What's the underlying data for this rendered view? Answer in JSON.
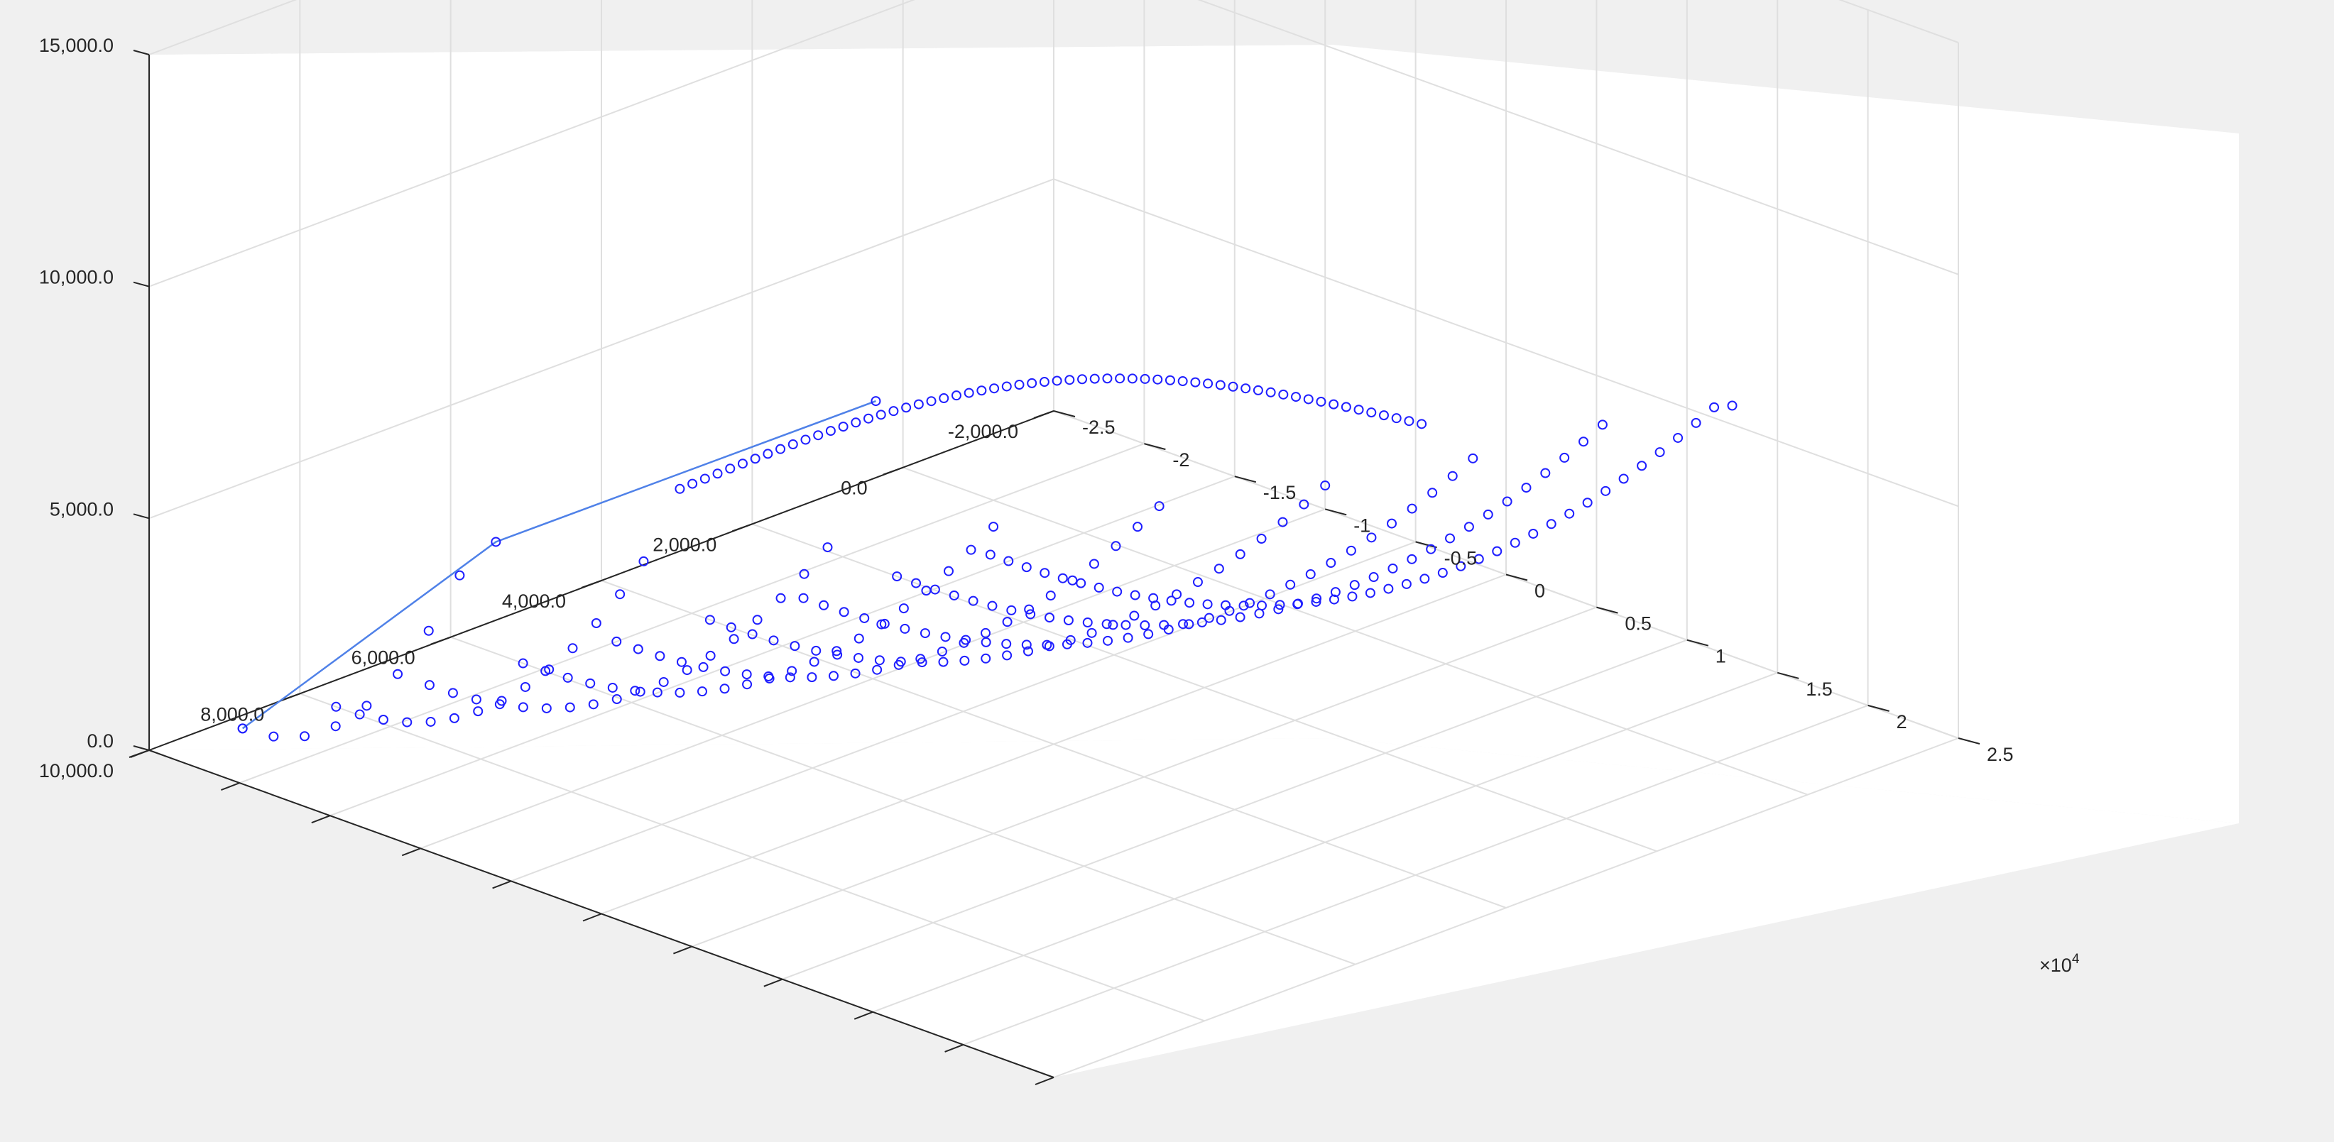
{
  "chart_data": {
    "type": "scatter3d",
    "title": "",
    "xlabel": "",
    "ylabel": "",
    "zlabel": "",
    "grid": true,
    "colors": {
      "marker": "#1f1fff",
      "line": "#4f81e8",
      "axes": "#262626",
      "grid": "#dfdfdf",
      "figure_bg": "#f0f0f0",
      "axes_bg": "#ffffff"
    },
    "axes": {
      "x": {
        "lim": [
          -2.5,
          2.5
        ],
        "ticks": [
          "-2.5",
          "-2",
          "-1.5",
          "-1",
          "-0.5",
          "0",
          "0.5",
          "1",
          "1.5",
          "2",
          "2.5"
        ],
        "multiplier": "×10",
        "multiplier_exp": "4"
      },
      "y": {
        "lim": [
          -2000,
          10000
        ],
        "ticks": [
          "-2,000.0",
          "0.0",
          "2,000.0",
          "4,000.0",
          "6,000.0",
          "8,000.0",
          "10,000.0"
        ]
      },
      "z": {
        "lim": [
          0,
          15000
        ],
        "ticks": [
          "0.0",
          "5,000.0",
          "10,000.0",
          "15,000.0"
        ]
      }
    },
    "series": [
      {
        "style": "markers",
        "description_points": "fan of circular markers along rows of constant y, rising in z toward a peak near z≈9000"
      },
      {
        "style": "line",
        "points": [
          [
            -2.4,
            9000,
            0
          ],
          [
            -1.0,
            9000,
            6000
          ],
          [
            1.1,
            9000,
            12000
          ]
        ]
      }
    ],
    "point_set": {
      "rows": [
        {
          "y": 9000,
          "x_start": -2.4,
          "x_end": -1.2,
          "n": 8
        },
        {
          "y": 8000,
          "x_start": -2.3,
          "x_end": -0.6,
          "n": 14
        },
        {
          "y": 7000,
          "x_start": -2.2,
          "x_end": 0.0,
          "n": 18
        },
        {
          "y": 6000,
          "x_start": -2.1,
          "x_end": 0.5,
          "n": 22
        },
        {
          "y": 5000,
          "x_start": -2.0,
          "x_end": 1.0,
          "n": 26
        },
        {
          "y": 4000,
          "x_start": -1.9,
          "x_end": 1.5,
          "n": 30
        },
        {
          "y": 3000,
          "x_start": -1.8,
          "x_end": 1.9,
          "n": 34
        },
        {
          "y": 2000,
          "x_start": -1.7,
          "x_end": 2.2,
          "n": 38
        },
        {
          "y": 1000,
          "x_start": -1.6,
          "x_end": 2.5,
          "n": 42
        }
      ],
      "peak_z": 9000
    }
  }
}
